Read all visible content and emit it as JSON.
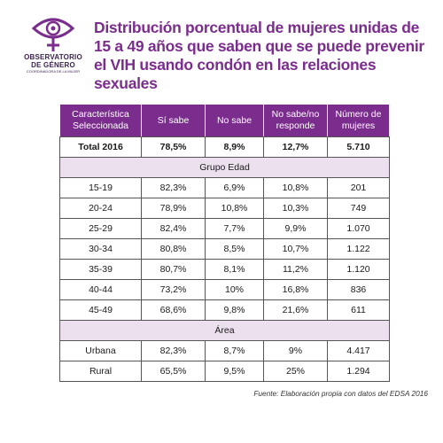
{
  "logo": {
    "line1": "OBSERVATORIO",
    "line2": "DE GÉNERO",
    "line3": "COORDINADORA DE LA MUJER"
  },
  "title": "Distribución porcentual de mujeres unidas de 15 a 49 años que saben que se puede prevenir el VIH usando condón en las relaciones sexuales",
  "table": {
    "headers": [
      "Característica Seleccionada",
      "Sí sabe",
      "No sabe",
      "No sabe/no responde",
      "Número de mujeres"
    ],
    "total": [
      "Total 2016",
      "78,5%",
      "8,9%",
      "12,7%",
      "5.710"
    ],
    "sections": [
      {
        "title": "Grupo Edad",
        "rows": [
          [
            "15-19",
            "82,3%",
            "6,9%",
            "10,8%",
            "201"
          ],
          [
            "20-24",
            "78,9%",
            "10,8%",
            "10,3%",
            "749"
          ],
          [
            "25-29",
            "82,4%",
            "7,7%",
            "9,9%",
            "1.070"
          ],
          [
            "30-34",
            "80,8%",
            "8,5%",
            "10,7%",
            "1.122"
          ],
          [
            "35-39",
            "80,7%",
            "8,1%",
            "11,2%",
            "1.120"
          ],
          [
            "40-44",
            "73,2%",
            "10%",
            "16,8%",
            "836"
          ],
          [
            "45-49",
            "68,6%",
            "9,8%",
            "21,6%",
            "611"
          ]
        ]
      },
      {
        "title": "Área",
        "rows": [
          [
            "Urbana",
            "82,3%",
            "8,7%",
            "9%",
            "4.417"
          ],
          [
            "Rural",
            "65,5%",
            "9,5%",
            "25%",
            "1.294"
          ]
        ]
      }
    ]
  },
  "source": "Fuente: Elaboración propia con datos del EDSA 2016",
  "colors": {
    "accent": "#7b2d8e",
    "section_bg": "#ece0ef",
    "logo_dark": "#3d2350"
  }
}
